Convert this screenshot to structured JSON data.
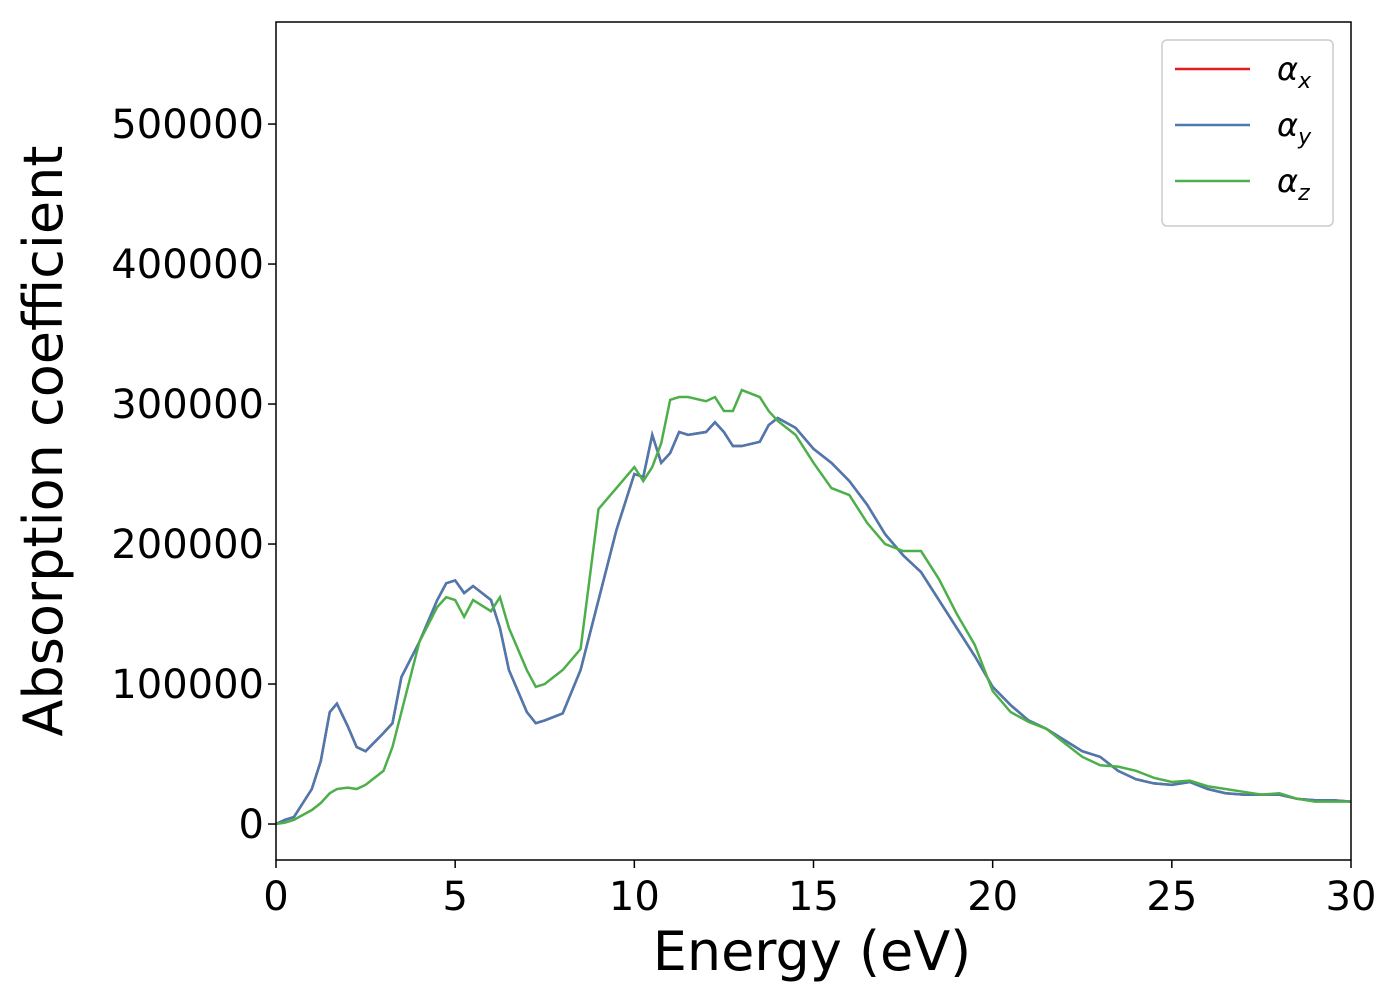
{
  "chart_data": {
    "type": "line",
    "xlabel": "Energy (eV)",
    "ylabel": "Absorption coefficient",
    "x": [
      0,
      0.25,
      0.5,
      1.0,
      1.25,
      1.5,
      1.7,
      2.0,
      2.25,
      2.5,
      3.0,
      3.25,
      3.5,
      4.0,
      4.5,
      4.75,
      5.0,
      5.25,
      5.5,
      6.0,
      6.25,
      6.5,
      7.0,
      7.25,
      7.5,
      8.0,
      8.5,
      9.0,
      9.5,
      10.0,
      10.25,
      10.5,
      10.75,
      11.0,
      11.25,
      11.5,
      12.0,
      12.25,
      12.5,
      12.75,
      13.0,
      13.5,
      13.75,
      14.0,
      14.5,
      15.0,
      15.5,
      16.0,
      16.5,
      17.0,
      17.5,
      18.0,
      18.5,
      19.0,
      19.5,
      20.0,
      20.5,
      21.0,
      21.5,
      22.0,
      22.5,
      23.0,
      23.5,
      24.0,
      24.5,
      25.0,
      25.5,
      26.0,
      26.5,
      27.0,
      27.5,
      28.0,
      28.5,
      29.0,
      29.5,
      30.0
    ],
    "series": [
      {
        "name": "αx",
        "color": "#e41a1c",
        "values": [
          0,
          3000,
          5000,
          25000,
          45000,
          80000,
          86000,
          70000,
          55000,
          52000,
          65000,
          72000,
          105000,
          130000,
          160000,
          172000,
          174000,
          165000,
          170000,
          160000,
          140000,
          110000,
          80000,
          72000,
          74000,
          79000,
          110000,
          160000,
          210000,
          250000,
          248000,
          278000,
          258000,
          265000,
          280000,
          278000,
          280000,
          287000,
          280000,
          270000,
          270000,
          273000,
          285000,
          290000,
          283000,
          268000,
          258000,
          245000,
          228000,
          207000,
          192000,
          180000,
          160000,
          140000,
          120000,
          98000,
          85000,
          74000,
          68000,
          60000,
          52000,
          48000,
          38000,
          32000,
          29000,
          28000,
          30000,
          25000,
          22000,
          21000,
          21000,
          21000,
          18000,
          17000,
          17000,
          16000
        ]
      },
      {
        "name": "αy",
        "color": "#4a7ab0",
        "values": [
          0,
          3000,
          5000,
          25000,
          45000,
          80000,
          86000,
          70000,
          55000,
          52000,
          65000,
          72000,
          105000,
          130000,
          160000,
          172000,
          174000,
          165000,
          170000,
          160000,
          140000,
          110000,
          80000,
          72000,
          74000,
          79000,
          110000,
          160000,
          210000,
          250000,
          248000,
          278000,
          258000,
          265000,
          280000,
          278000,
          280000,
          287000,
          280000,
          270000,
          270000,
          273000,
          285000,
          290000,
          283000,
          268000,
          258000,
          245000,
          228000,
          207000,
          192000,
          180000,
          160000,
          140000,
          120000,
          98000,
          85000,
          74000,
          68000,
          60000,
          52000,
          48000,
          38000,
          32000,
          29000,
          28000,
          30000,
          25000,
          22000,
          21000,
          21000,
          21000,
          18000,
          17000,
          17000,
          16000
        ]
      },
      {
        "name": "αz",
        "color": "#4daf4a",
        "values": [
          0,
          1000,
          3000,
          10000,
          15000,
          22000,
          25000,
          26000,
          25000,
          28000,
          38000,
          55000,
          80000,
          130000,
          155000,
          162000,
          160000,
          148000,
          160000,
          152000,
          162000,
          140000,
          110000,
          98000,
          100000,
          110000,
          125000,
          225000,
          240000,
          255000,
          245000,
          255000,
          272000,
          303000,
          305000,
          305000,
          302000,
          305000,
          295000,
          295000,
          310000,
          305000,
          295000,
          288000,
          278000,
          258000,
          240000,
          235000,
          215000,
          200000,
          195000,
          195000,
          175000,
          150000,
          128000,
          95000,
          80000,
          73000,
          68000,
          58000,
          48000,
          42000,
          41000,
          38000,
          33000,
          30000,
          31000,
          27000,
          25000,
          23000,
          21000,
          22000,
          18000,
          16000,
          16000,
          16000
        ]
      }
    ],
    "xlim": [
      0,
      30
    ],
    "xticks": [
      0,
      5,
      10,
      15,
      20,
      25,
      30
    ],
    "ylim": [
      -25700,
      572900
    ],
    "yticks": [
      0,
      100000,
      200000,
      300000,
      400000,
      500000
    ],
    "legend": "upper right",
    "grid": false
  }
}
